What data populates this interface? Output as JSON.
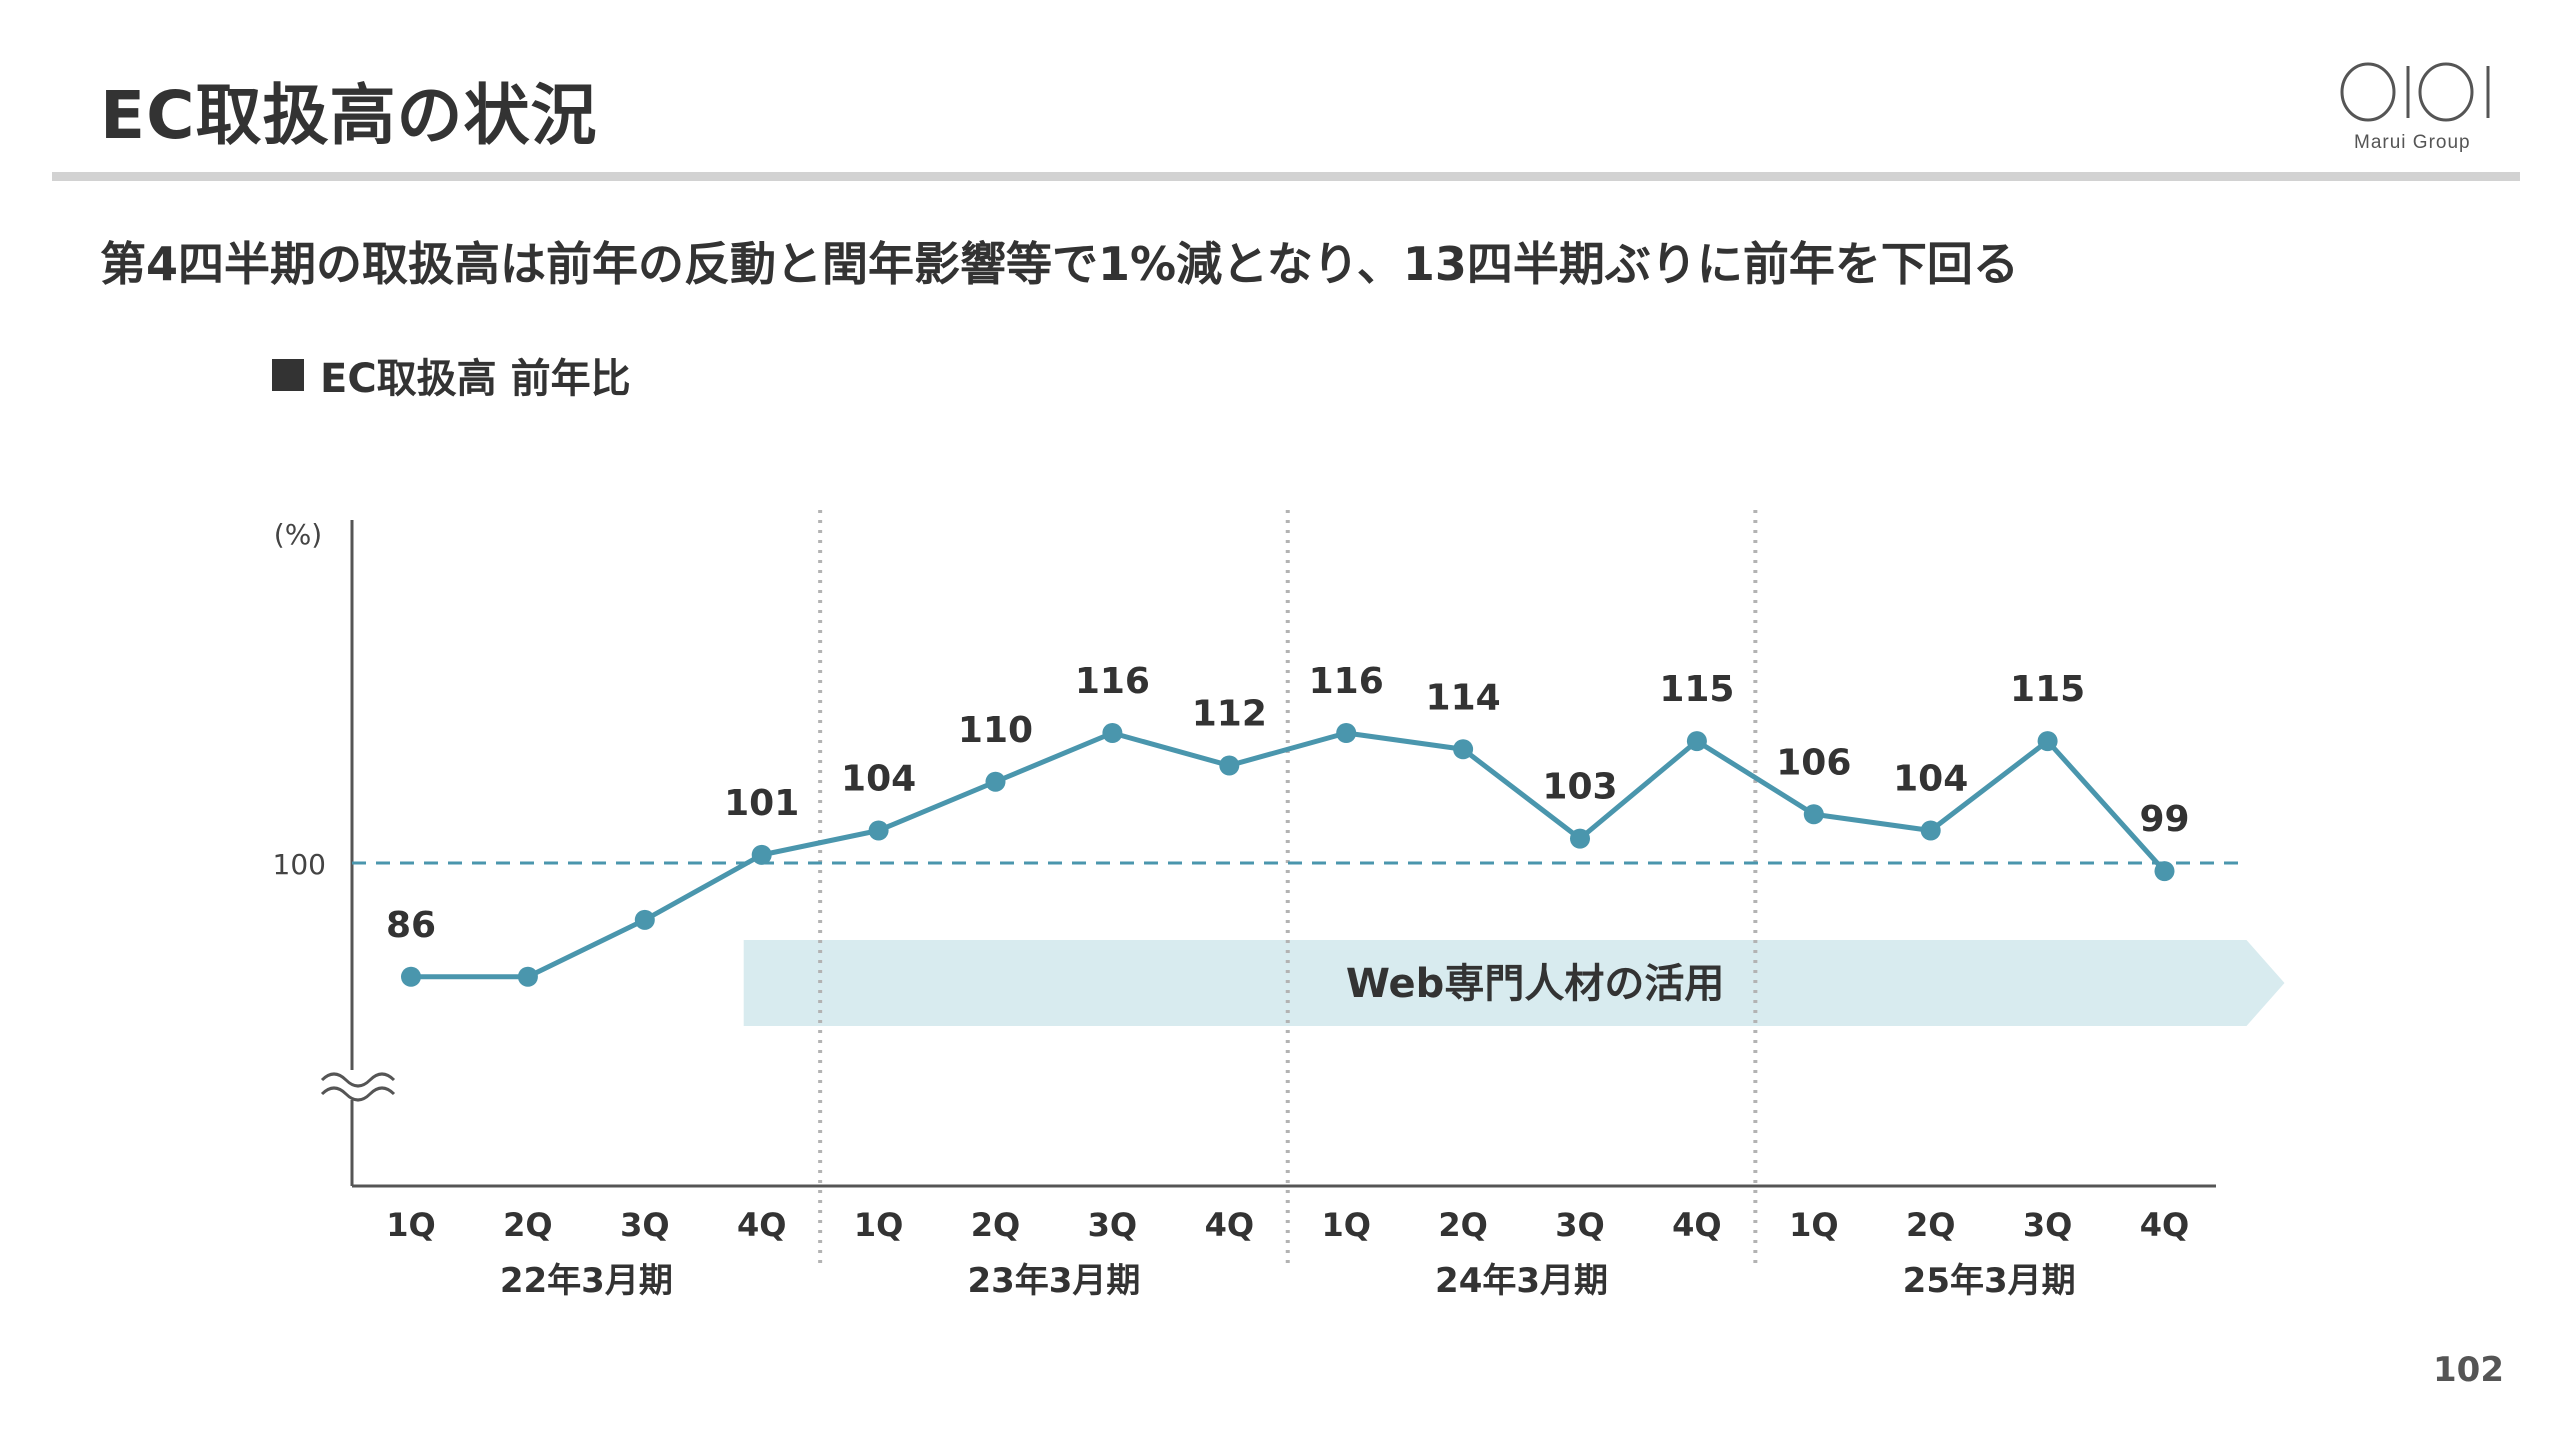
{
  "page": {
    "title": "EC取扱高の状況",
    "subtitle": "第4四半期の取扱高は前年の反動と閏年影響等で1%減となり、13四半期ぶりに前年を下回る",
    "page_number": "102",
    "logo_text": "Marui Group"
  },
  "legend": {
    "label": "EC取扱高 前年比"
  },
  "colors": {
    "line": "#4a96ad",
    "baseline": "#4a96ad",
    "band": "#d8ebef",
    "text": "#333333",
    "divider": "#b3b3b3"
  },
  "chart_data": {
    "type": "line",
    "ylabel": "(%)",
    "y_ticks": [
      "100"
    ],
    "reference_line": 100,
    "axis_break": true,
    "categories": [
      "1Q",
      "2Q",
      "3Q",
      "4Q",
      "1Q",
      "2Q",
      "3Q",
      "4Q",
      "1Q",
      "2Q",
      "3Q",
      "4Q",
      "1Q",
      "2Q",
      "3Q",
      "4Q"
    ],
    "groups": [
      "22年3月期",
      "23年3月期",
      "24年3月期",
      "25年3月期"
    ],
    "series": [
      {
        "values": [
          86,
          86,
          93,
          101,
          104,
          110,
          116,
          112,
          116,
          114,
          103,
          115,
          106,
          104,
          115,
          99
        ],
        "labels": [
          "86",
          "",
          "",
          "101",
          "104",
          "110",
          "116",
          "112",
          "116",
          "114",
          "103",
          "115",
          "106",
          "104",
          "115",
          "99"
        ]
      }
    ],
    "annotation": {
      "text": "Web専門人材の活用",
      "start_index": 3,
      "end_index": 15
    }
  }
}
